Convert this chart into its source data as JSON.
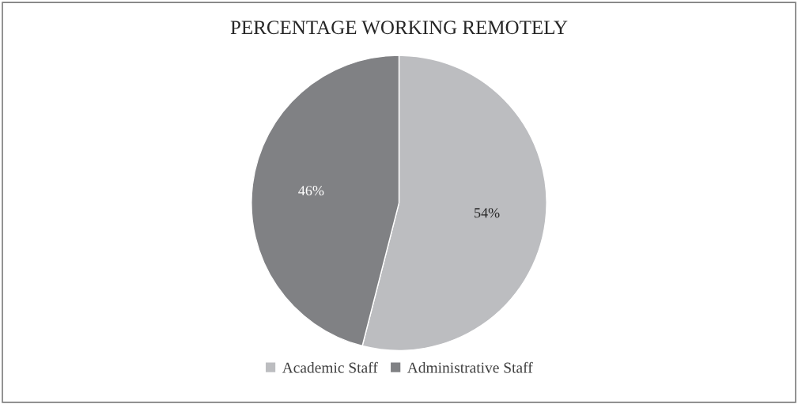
{
  "chart_data": {
    "type": "pie",
    "title": "PERCENTAGE WORKING REMOTELY",
    "categories": [
      "Academic Staff",
      "Administrative Staff"
    ],
    "values": [
      54,
      46
    ],
    "colors": [
      "#bcbdc0",
      "#808184"
    ],
    "value_labels": [
      "54%",
      "46%"
    ],
    "legend": "bottom"
  }
}
